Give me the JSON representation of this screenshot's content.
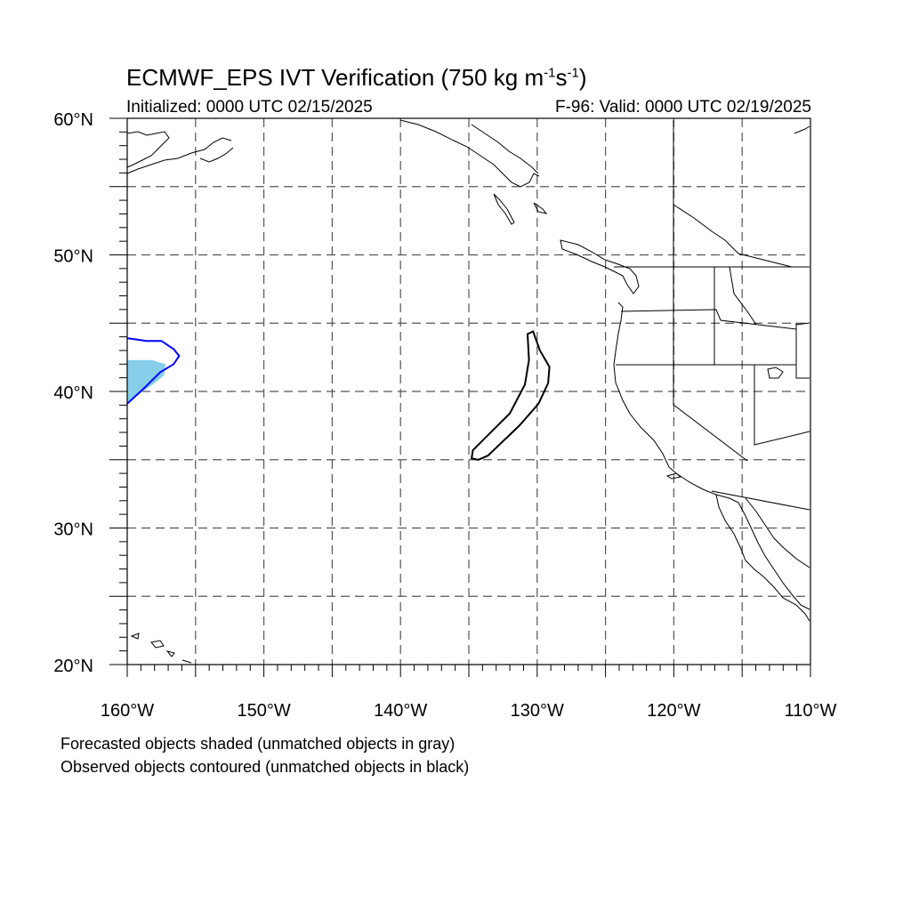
{
  "title": {
    "prefix": "ECMWF_EPS IVT Verification (750 kg m",
    "sup1": "-1",
    "mid": "s",
    "sup2": "-1",
    "suffix": ")"
  },
  "initialized": "Initialized: 0000 UTC 02/15/2025",
  "valid": "F-96: Valid: 0000 UTC 02/19/2025",
  "map": {
    "lat_range": [
      20,
      60
    ],
    "lon_range": [
      -160,
      -110
    ],
    "lat_labels": [
      {
        "lat": 60,
        "label": "60°N"
      },
      {
        "lat": 50,
        "label": "50°N"
      },
      {
        "lat": 40,
        "label": "40°N"
      },
      {
        "lat": 30,
        "label": "30°N"
      },
      {
        "lat": 20,
        "label": "20°N"
      }
    ],
    "lon_labels": [
      {
        "lon": -160,
        "label": "160°W"
      },
      {
        "lon": -150,
        "label": "150°W"
      },
      {
        "lon": -140,
        "label": "140°W"
      },
      {
        "lon": -130,
        "label": "130°W"
      },
      {
        "lon": -120,
        "label": "120°W"
      },
      {
        "lon": -110,
        "label": "110°W"
      }
    ],
    "colors": {
      "forecast_fill": "#87ceeb",
      "matched_contour": "#0000ff",
      "unmatched_contour": "#000000",
      "grid": "#555555"
    },
    "forecast_object_matched": [
      [
        -160,
        39.2
      ],
      [
        -158,
        40.6
      ],
      [
        -157.3,
        41.2
      ],
      [
        -157.2,
        42.0
      ],
      [
        -158.2,
        42.3
      ],
      [
        -160,
        42.3
      ]
    ],
    "observed_object_matched": [
      [
        -160,
        43.9
      ],
      [
        -158.6,
        43.7
      ],
      [
        -157.5,
        43.7
      ],
      [
        -156.6,
        43.1
      ],
      [
        -156.2,
        42.6
      ],
      [
        -156.6,
        42.0
      ],
      [
        -157.6,
        41.4
      ],
      [
        -158.8,
        40.2
      ],
      [
        -160,
        39.1
      ]
    ],
    "observed_object_unmatched": [
      [
        -130.3,
        44.4
      ],
      [
        -129.8,
        43.0
      ],
      [
        -129.1,
        41.8
      ],
      [
        -129.2,
        40.6
      ],
      [
        -129.9,
        39.1
      ],
      [
        -131.3,
        37.5
      ],
      [
        -133.6,
        35.3
      ],
      [
        -134.3,
        35.0
      ],
      [
        -134.8,
        35.1
      ],
      [
        -134.7,
        35.7
      ],
      [
        -133.8,
        36.6
      ],
      [
        -132.0,
        38.4
      ],
      [
        -130.9,
        40.5
      ],
      [
        -130.6,
        42.3
      ],
      [
        -130.7,
        44.2
      ]
    ]
  },
  "notes": [
    "Forecasted objects shaded (unmatched objects in gray)",
    "Observed objects contoured (unmatched objects in black)"
  ]
}
